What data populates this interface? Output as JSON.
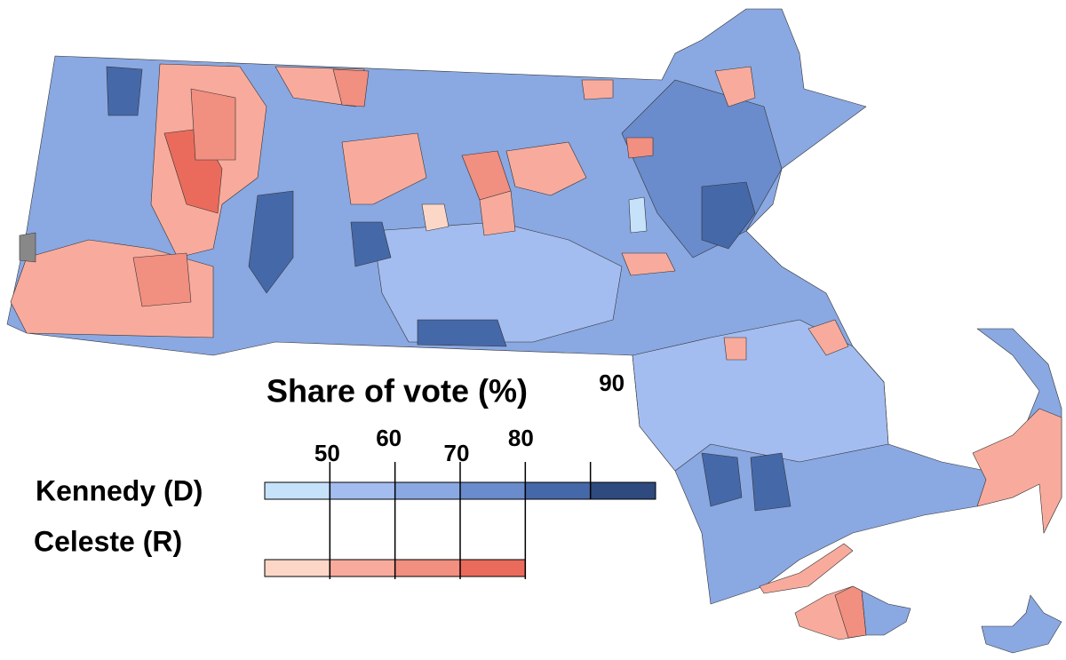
{
  "legend": {
    "title": "Share of vote (%)",
    "range": [
      40,
      100
    ],
    "ticks": [
      50,
      60,
      70,
      80,
      90
    ],
    "rows": [
      {
        "name": "Kennedy (D)",
        "colors": [
          "#c6e2fb",
          "#a4bdf0",
          "#8aa8e2",
          "#6a8ccc",
          "#4568a8",
          "#2e4a7e"
        ]
      },
      {
        "name": "Celeste (R)",
        "colors": [
          "#fcd7c7",
          "#f8ab9c",
          "#f18f80",
          "#ea6b5c"
        ]
      }
    ]
  }
}
